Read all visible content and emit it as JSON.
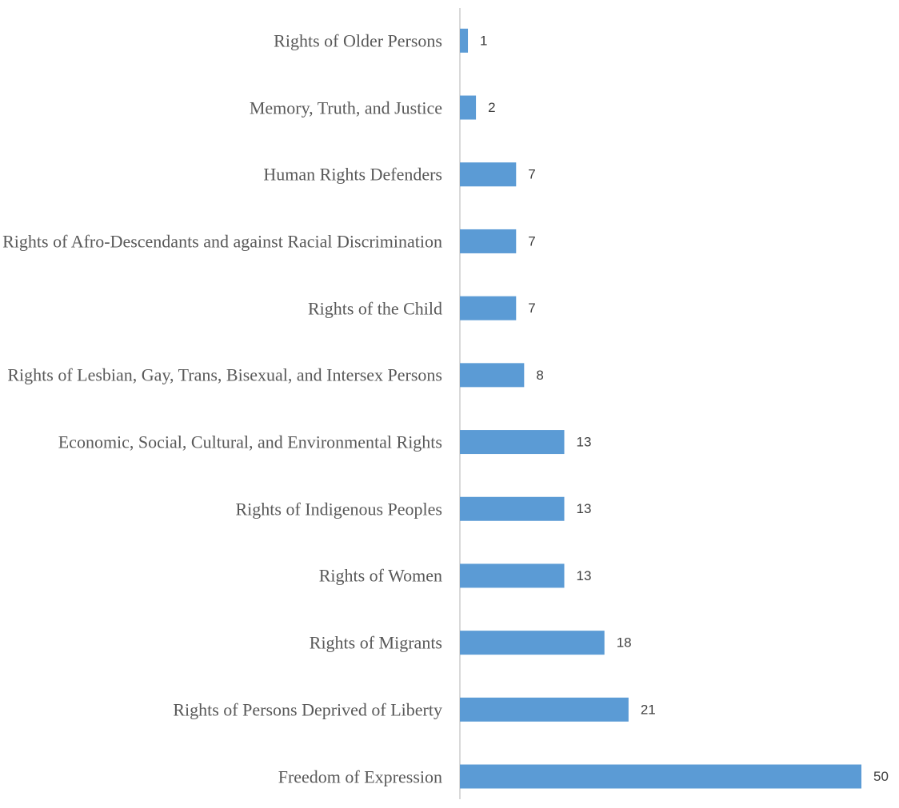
{
  "chart_data": {
    "type": "barh",
    "categories": [
      "Rights of Older Persons",
      "Memory, Truth, and Justice",
      "Human Rights Defenders",
      "Rights of Afro-Descendants and against Racial Discrimination",
      "Rights of the Child",
      "Rights of Lesbian, Gay, Trans, Bisexual, and Intersex Persons",
      "Economic, Social, Cultural, and Environmental Rights",
      "Rights of Indigenous Peoples",
      "Rights of Women",
      "Rights of Migrants",
      "Rights of Persons Deprived of Liberty",
      "Freedom of Expression"
    ],
    "values": [
      1,
      2,
      7,
      7,
      7,
      8,
      13,
      13,
      13,
      18,
      21,
      50
    ],
    "color": "#5b9bd5",
    "data_labels": true
  }
}
